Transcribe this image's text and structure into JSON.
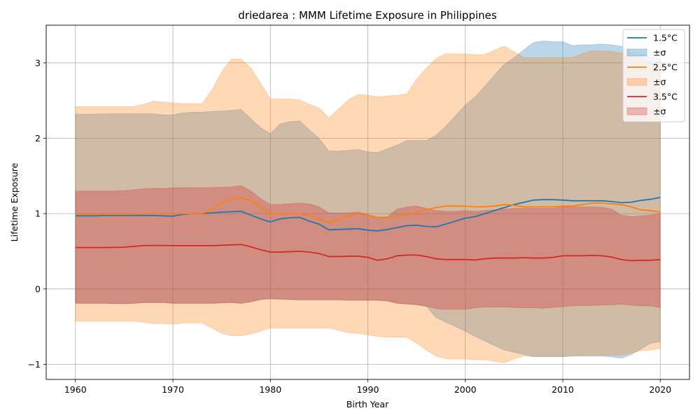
{
  "chart_data": {
    "type": "area",
    "title": "driedarea : MMM Lifetime Exposure in Philippines",
    "xlabel": "Birth Year",
    "ylabel": "Lifetime Exposure",
    "xlim": [
      1957,
      2023
    ],
    "ylim": [
      -1.2,
      3.5
    ],
    "xticks": [
      1960,
      1970,
      1980,
      1990,
      2000,
      2010,
      2020
    ],
    "yticks": [
      -1,
      0,
      1,
      2,
      3
    ],
    "grid": true,
    "legend_position": "top-right",
    "x": [
      1960,
      1961,
      1962,
      1963,
      1964,
      1965,
      1966,
      1967,
      1968,
      1969,
      1970,
      1971,
      1972,
      1973,
      1974,
      1975,
      1976,
      1977,
      1978,
      1979,
      1980,
      1981,
      1982,
      1983,
      1984,
      1985,
      1986,
      1987,
      1988,
      1989,
      1990,
      1991,
      1992,
      1993,
      1994,
      1995,
      1996,
      1997,
      1998,
      1999,
      2000,
      2001,
      2002,
      2003,
      2004,
      2005,
      2006,
      2007,
      2008,
      2009,
      2010,
      2011,
      2012,
      2013,
      2014,
      2015,
      2016,
      2017,
      2018,
      2019,
      2020
    ],
    "series": [
      {
        "name": "1.5°C",
        "band_name": "±σ",
        "color": "#1f77b4",
        "mean": [
          0.97,
          0.97,
          0.97,
          0.975,
          0.975,
          0.975,
          0.975,
          0.975,
          0.975,
          0.97,
          0.965,
          0.99,
          1.0,
          1.0,
          1.01,
          1.02,
          1.025,
          1.03,
          0.98,
          0.93,
          0.89,
          0.93,
          0.945,
          0.95,
          0.9,
          0.86,
          0.785,
          0.79,
          0.795,
          0.8,
          0.78,
          0.77,
          0.79,
          0.815,
          0.84,
          0.845,
          0.83,
          0.825,
          0.86,
          0.9,
          0.94,
          0.96,
          1.0,
          1.04,
          1.08,
          1.12,
          1.15,
          1.18,
          1.185,
          1.185,
          1.18,
          1.17,
          1.17,
          1.17,
          1.17,
          1.16,
          1.145,
          1.15,
          1.175,
          1.19,
          1.215
        ],
        "upper": [
          2.32,
          2.32,
          2.32,
          2.325,
          2.325,
          2.325,
          2.325,
          2.325,
          2.325,
          2.31,
          2.31,
          2.335,
          2.345,
          2.345,
          2.355,
          2.36,
          2.37,
          2.38,
          2.26,
          2.14,
          2.06,
          2.19,
          2.22,
          2.23,
          2.11,
          2.0,
          1.83,
          1.83,
          1.84,
          1.85,
          1.82,
          1.81,
          1.86,
          1.91,
          1.97,
          1.97,
          1.97,
          2.04,
          2.16,
          2.3,
          2.44,
          2.55,
          2.69,
          2.84,
          2.98,
          3.07,
          3.17,
          3.27,
          3.29,
          3.28,
          3.28,
          3.23,
          3.24,
          3.24,
          3.25,
          3.24,
          3.22,
          3.15,
          3.12,
          3.08,
          3.06
        ],
        "lower": [
          -0.19,
          -0.19,
          -0.19,
          -0.19,
          -0.195,
          -0.195,
          -0.19,
          -0.18,
          -0.18,
          -0.18,
          -0.19,
          -0.19,
          -0.19,
          -0.19,
          -0.19,
          -0.185,
          -0.18,
          -0.19,
          -0.17,
          -0.14,
          -0.13,
          -0.135,
          -0.14,
          -0.145,
          -0.145,
          -0.145,
          -0.145,
          -0.145,
          -0.15,
          -0.15,
          -0.15,
          -0.15,
          -0.16,
          -0.19,
          -0.2,
          -0.21,
          -0.23,
          -0.38,
          -0.44,
          -0.5,
          -0.56,
          -0.63,
          -0.69,
          -0.75,
          -0.81,
          -0.84,
          -0.87,
          -0.9,
          -0.9,
          -0.9,
          -0.9,
          -0.89,
          -0.89,
          -0.89,
          -0.89,
          -0.9,
          -0.92,
          -0.87,
          -0.8,
          -0.72,
          -0.7
        ]
      },
      {
        "name": "2.5°C",
        "band_name": "±σ",
        "color": "#ff7f0e",
        "mean": [
          0.99,
          0.99,
          0.99,
          0.99,
          0.99,
          0.99,
          0.99,
          1.0,
          1.01,
          1.0,
          0.99,
          1.0,
          1.0,
          1.0,
          1.05,
          1.15,
          1.2,
          1.21,
          1.17,
          1.08,
          1.0,
          1.0,
          1.0,
          1.0,
          0.97,
          0.93,
          0.88,
          0.92,
          0.97,
          1.0,
          0.98,
          0.95,
          0.95,
          0.97,
          0.98,
          1.02,
          1.05,
          1.08,
          1.1,
          1.1,
          1.1,
          1.09,
          1.09,
          1.1,
          1.12,
          1.11,
          1.09,
          1.09,
          1.09,
          1.09,
          1.1,
          1.1,
          1.12,
          1.14,
          1.14,
          1.13,
          1.12,
          1.09,
          1.05,
          1.04,
          1.02
        ],
        "upper": [
          2.42,
          2.42,
          2.42,
          2.42,
          2.42,
          2.42,
          2.42,
          2.45,
          2.49,
          2.48,
          2.47,
          2.46,
          2.46,
          2.46,
          2.64,
          2.88,
          3.05,
          3.05,
          2.93,
          2.73,
          2.52,
          2.52,
          2.52,
          2.51,
          2.45,
          2.4,
          2.27,
          2.39,
          2.51,
          2.58,
          2.57,
          2.55,
          2.56,
          2.57,
          2.59,
          2.78,
          2.93,
          3.06,
          3.12,
          3.12,
          3.12,
          3.11,
          3.11,
          3.17,
          3.22,
          3.15,
          3.07,
          3.07,
          3.07,
          3.07,
          3.07,
          3.07,
          3.12,
          3.16,
          3.16,
          3.15,
          3.13,
          3.1,
          3.06,
          3.0,
          2.96
        ],
        "lower": [
          -0.43,
          -0.43,
          -0.43,
          -0.43,
          -0.43,
          -0.43,
          -0.43,
          -0.44,
          -0.46,
          -0.46,
          -0.47,
          -0.45,
          -0.45,
          -0.45,
          -0.52,
          -0.59,
          -0.62,
          -0.62,
          -0.6,
          -0.56,
          -0.52,
          -0.52,
          -0.52,
          -0.52,
          -0.52,
          -0.52,
          -0.52,
          -0.55,
          -0.58,
          -0.59,
          -0.61,
          -0.63,
          -0.64,
          -0.64,
          -0.64,
          -0.72,
          -0.81,
          -0.89,
          -0.93,
          -0.93,
          -0.93,
          -0.94,
          -0.94,
          -0.96,
          -0.98,
          -0.93,
          -0.89,
          -0.89,
          -0.89,
          -0.89,
          -0.89,
          -0.89,
          -0.88,
          -0.88,
          -0.88,
          -0.88,
          -0.88,
          -0.85,
          -0.82,
          -0.81,
          -0.79
        ]
      },
      {
        "name": "3.5°C",
        "band_name": "±σ",
        "color": "#d62728",
        "mean": [
          0.55,
          0.55,
          0.55,
          0.55,
          0.552,
          0.555,
          0.565,
          0.575,
          0.578,
          0.578,
          0.575,
          0.575,
          0.575,
          0.575,
          0.575,
          0.58,
          0.585,
          0.59,
          0.56,
          0.52,
          0.49,
          0.49,
          0.495,
          0.5,
          0.49,
          0.47,
          0.43,
          0.43,
          0.435,
          0.435,
          0.42,
          0.38,
          0.4,
          0.44,
          0.45,
          0.45,
          0.43,
          0.4,
          0.39,
          0.39,
          0.39,
          0.385,
          0.4,
          0.41,
          0.41,
          0.41,
          0.415,
          0.41,
          0.41,
          0.42,
          0.44,
          0.44,
          0.44,
          0.445,
          0.44,
          0.425,
          0.39,
          0.375,
          0.38,
          0.38,
          0.39
        ],
        "upper": [
          1.3,
          1.3,
          1.3,
          1.3,
          1.3,
          1.305,
          1.315,
          1.33,
          1.335,
          1.335,
          1.34,
          1.345,
          1.345,
          1.345,
          1.345,
          1.35,
          1.355,
          1.37,
          1.3,
          1.2,
          1.12,
          1.12,
          1.13,
          1.14,
          1.13,
          1.09,
          1.01,
          1.01,
          1.01,
          1.02,
          0.99,
          0.93,
          0.96,
          1.06,
          1.09,
          1.1,
          1.07,
          1.04,
          1.03,
          1.03,
          1.04,
          1.03,
          1.04,
          1.05,
          1.06,
          1.07,
          1.07,
          1.07,
          1.07,
          1.07,
          1.09,
          1.09,
          1.09,
          1.09,
          1.085,
          1.06,
          0.98,
          0.96,
          0.97,
          0.98,
          1.0
        ],
        "lower": [
          -0.19,
          -0.19,
          -0.19,
          -0.19,
          -0.195,
          -0.195,
          -0.19,
          -0.18,
          -0.18,
          -0.18,
          -0.19,
          -0.19,
          -0.19,
          -0.19,
          -0.19,
          -0.185,
          -0.18,
          -0.19,
          -0.17,
          -0.14,
          -0.13,
          -0.135,
          -0.14,
          -0.145,
          -0.145,
          -0.145,
          -0.145,
          -0.145,
          -0.15,
          -0.15,
          -0.15,
          -0.15,
          -0.16,
          -0.19,
          -0.2,
          -0.21,
          -0.23,
          -0.26,
          -0.27,
          -0.27,
          -0.27,
          -0.25,
          -0.24,
          -0.24,
          -0.24,
          -0.245,
          -0.25,
          -0.25,
          -0.255,
          -0.245,
          -0.235,
          -0.225,
          -0.22,
          -0.22,
          -0.215,
          -0.21,
          -0.205,
          -0.215,
          -0.225,
          -0.225,
          -0.25
        ]
      }
    ]
  }
}
